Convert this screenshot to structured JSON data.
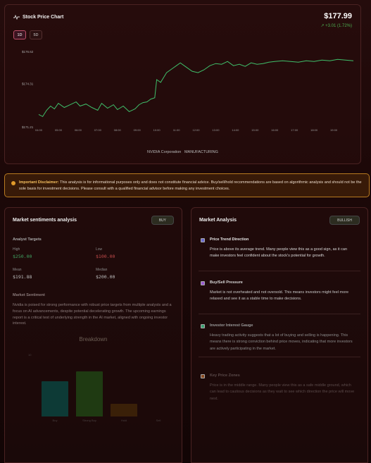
{
  "header": {
    "title": "Stock Price Chart",
    "price": "$177.99",
    "change": "+3.01 (1.72%)",
    "ranges": [
      "1D",
      "5D"
    ],
    "active_range": "1D",
    "company": "NVIDIA Corporation",
    "sector": "MANUFACTURING"
  },
  "chart_data": {
    "type": "line",
    "y_ticks": [
      "$176.62",
      "$174.31",
      "$171.21"
    ],
    "x_ticks": [
      "04:00",
      "05:00",
      "06:00",
      "07:00",
      "08:00",
      "09:00",
      "10:00",
      "11:00",
      "12:00",
      "13:00",
      "14:00",
      "15:00",
      "16:00",
      "17:00",
      "18:00",
      "19:00"
    ],
    "ylim": [
      171.21,
      176.62
    ],
    "series": [
      {
        "color": "#3fbf6a",
        "x": [
          4.0,
          4.2,
          4.4,
          4.6,
          4.8,
          5.0,
          5.3,
          5.6,
          5.9,
          6.1,
          6.4,
          6.7,
          7.0,
          7.2,
          7.5,
          7.8,
          8.0,
          8.3,
          8.6,
          8.9,
          9.1,
          9.3,
          9.5,
          9.7,
          9.9,
          10.0,
          10.2,
          10.5,
          10.8,
          11.0,
          11.2,
          11.5,
          11.8,
          12.1,
          12.4,
          12.7,
          13.0,
          13.3,
          13.6,
          13.9,
          14.2,
          14.5,
          14.8,
          15.1,
          15.4,
          15.7,
          16.0,
          16.4,
          16.8,
          17.2,
          17.6,
          18.0,
          18.4,
          18.8,
          19.2,
          19.6,
          20.0
        ],
        "y": [
          172.1,
          171.95,
          172.4,
          172.7,
          172.5,
          172.9,
          172.6,
          172.8,
          173.0,
          172.7,
          172.85,
          172.6,
          172.4,
          172.9,
          172.55,
          172.8,
          172.45,
          172.7,
          172.3,
          172.5,
          172.8,
          172.95,
          173.0,
          173.2,
          173.3,
          174.6,
          174.4,
          175.1,
          175.4,
          175.6,
          175.8,
          175.5,
          175.2,
          175.1,
          175.3,
          175.6,
          175.75,
          175.7,
          175.9,
          175.6,
          175.7,
          175.55,
          175.8,
          175.7,
          175.75,
          175.85,
          175.9,
          175.95,
          175.9,
          175.85,
          175.95,
          175.9,
          176.0,
          175.95,
          176.05,
          176.0,
          175.95
        ]
      }
    ]
  },
  "disclaimer": {
    "heading": "Important Disclaimer:",
    "text": "This analysis is for informational purposes only and does not constitute financial advice. Buy/sell/hold recommendations are based on algorithmic analysis and should not be the sole basis for investment decisions. Please consult with a qualified financial advisor before making any investment choices."
  },
  "sentiment": {
    "title": "Market sentiments analysis",
    "badge": "BUY",
    "analyst_targets_label": "Analyst Targets",
    "high_label": "High",
    "high_value": "$250.00",
    "low_label": "Low",
    "low_value": "$100.00",
    "mean_label": "Mean",
    "mean_value": "$191.88",
    "median_label": "Median",
    "median_value": "$200.00",
    "market_sentiment_label": "Market Sentiment",
    "market_sentiment_text": "Nvidia is poised for strong performance with robust price targets from multiple analysts and a focus on AI advancements, despite potential decelerating growth. The upcoming earnings report is a critical test of underlying strength in the AI market, aligned with ongoing investor interest.",
    "breakdown_title": "Breakdown",
    "breakdown_axis_max": "10",
    "breakdown": [
      {
        "name": "Buy",
        "value": 5.9,
        "color": "#0d3a36"
      },
      {
        "name": "Strong Buy",
        "value": 7.6,
        "color": "#1f3a12"
      },
      {
        "name": "Hold",
        "value": 2.2,
        "color": "#3a2008"
      },
      {
        "name": "Sell",
        "value": 0,
        "color": "#2a1010"
      }
    ]
  },
  "analysis": {
    "title": "Market Analysis",
    "badge": "BULLISH",
    "items": [
      {
        "title": "Price Trend Direction",
        "text": "Price is above its average trend. Many people view this as a good sign, as it can make investors feel confident about the stock's potential for growth.",
        "color": "#6a6ad0"
      },
      {
        "title": "Buy/Sell Pressure",
        "text": "Market is not overheated and not oversold. This means investors might feel more relaxed and see it as a stable time to make decisions.",
        "color": "#9a5ad0"
      },
      {
        "title": "Investor Interest Gauge",
        "text": "Heavy trading activity suggests that a lot of buying and selling is happening. This means there is strong conviction behind price moves, indicating that more investors are actively participating in the market.",
        "color": "#3aa070"
      },
      {
        "title": "Key Price Zones",
        "text": "Price is in the middle range. Many people view this as a safe middle ground, which can lead to cautious decisions as they wait to see which direction the price will move next.",
        "color": "#8a4a20"
      }
    ]
  }
}
